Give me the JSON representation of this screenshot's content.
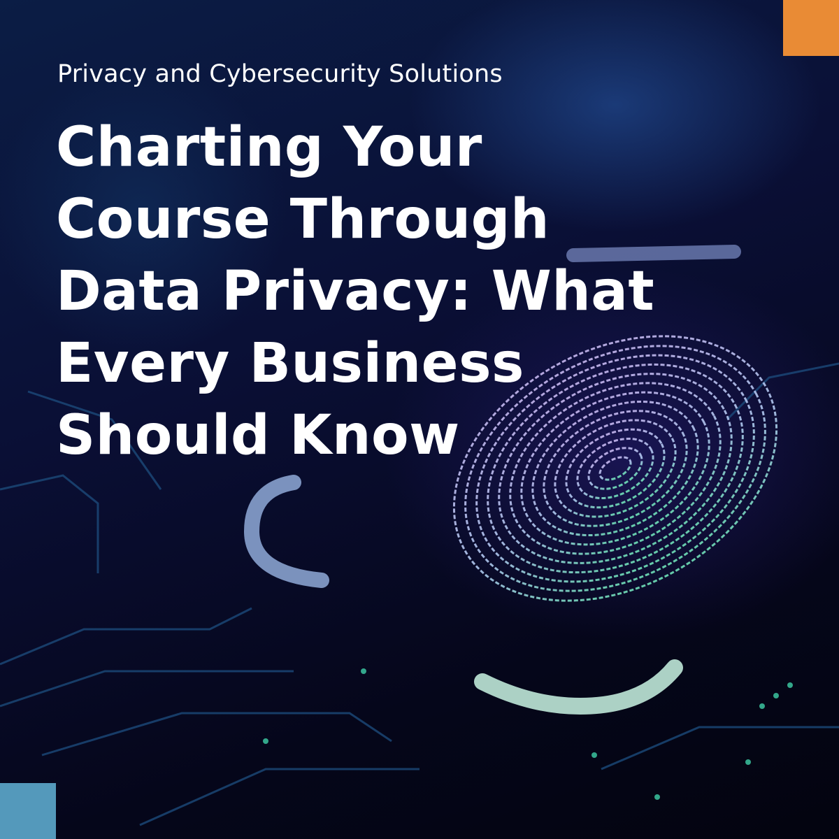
{
  "subtitle": "Privacy and Cybersecurity Solutions",
  "title": "Charting Your Course Through Data Privacy: What Every Business Should Know",
  "colors": {
    "accent_orange": "#e98b35",
    "accent_blue": "#5499bb",
    "background": "#05061a"
  },
  "image": {
    "icon": "fingerprint-icon"
  }
}
